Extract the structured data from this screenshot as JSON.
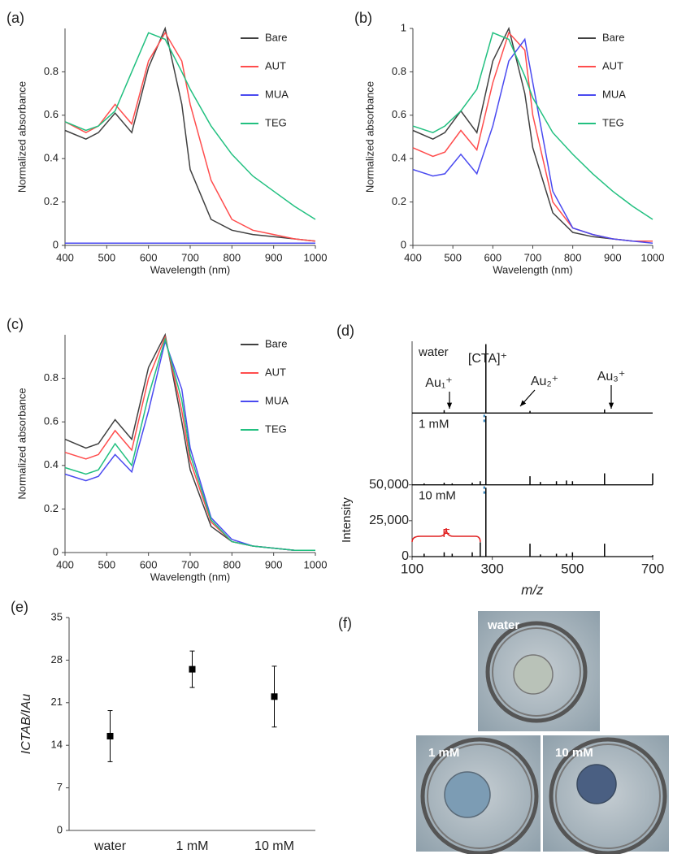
{
  "chart_data": [
    {
      "type": "line",
      "panel_label": "(a)",
      "x_label": "Wavelength  (nm)",
      "y_label": "Normalized  absorbance",
      "x": [
        400,
        450,
        480,
        520,
        560,
        600,
        640,
        680,
        700,
        750,
        800,
        850,
        900,
        950,
        1000
      ],
      "series": [
        {
          "name": "Bare",
          "color": "#404040",
          "values": [
            0.53,
            0.49,
            0.52,
            0.61,
            0.52,
            0.82,
            1.0,
            0.65,
            0.35,
            0.12,
            0.07,
            0.05,
            0.04,
            0.03,
            0.02
          ]
        },
        {
          "name": "AUT",
          "color": "#ff4d4d",
          "values": [
            0.57,
            0.52,
            0.55,
            0.65,
            0.56,
            0.85,
            0.98,
            0.85,
            0.65,
            0.3,
            0.12,
            0.07,
            0.05,
            0.03,
            0.02
          ]
        },
        {
          "name": "MUA",
          "color": "#4a4af0",
          "values": [
            0.01,
            0.01,
            0.01,
            0.01,
            0.01,
            0.01,
            0.01,
            0.01,
            0.01,
            0.01,
            0.01,
            0.01,
            0.01,
            0.01,
            0.01
          ]
        },
        {
          "name": "TEG",
          "color": "#22c080",
          "values": [
            0.57,
            0.53,
            0.55,
            0.62,
            0.8,
            0.98,
            0.95,
            0.8,
            0.72,
            0.55,
            0.42,
            0.32,
            0.25,
            0.18,
            0.12
          ]
        }
      ],
      "xlim": [
        400,
        1000
      ],
      "ylim": [
        0,
        1
      ],
      "xticks": [
        400,
        500,
        600,
        700,
        800,
        900,
        1000
      ],
      "yticks": [
        0,
        0.2,
        0.4,
        0.6,
        0.8
      ],
      "legend": "upper right"
    },
    {
      "type": "line",
      "panel_label": "(b)",
      "x_label": "Wavelength  (nm)",
      "y_label": "Normalized  absorbance",
      "x": [
        400,
        450,
        480,
        520,
        560,
        600,
        640,
        680,
        700,
        750,
        800,
        850,
        900,
        950,
        1000
      ],
      "series": [
        {
          "name": "Bare",
          "color": "#404040",
          "values": [
            0.53,
            0.49,
            0.52,
            0.62,
            0.52,
            0.85,
            1.0,
            0.7,
            0.45,
            0.15,
            0.06,
            0.04,
            0.03,
            0.02,
            0.02
          ]
        },
        {
          "name": "AUT",
          "color": "#ff4d4d",
          "values": [
            0.45,
            0.41,
            0.43,
            0.53,
            0.44,
            0.75,
            0.98,
            0.9,
            0.6,
            0.2,
            0.08,
            0.05,
            0.03,
            0.02,
            0.02
          ]
        },
        {
          "name": "MUA",
          "color": "#4a4af0",
          "values": [
            0.35,
            0.32,
            0.33,
            0.42,
            0.33,
            0.55,
            0.85,
            0.95,
            0.75,
            0.25,
            0.08,
            0.05,
            0.03,
            0.02,
            0.01
          ]
        },
        {
          "name": "TEG",
          "color": "#22c080",
          "values": [
            0.55,
            0.52,
            0.55,
            0.62,
            0.72,
            0.98,
            0.95,
            0.78,
            0.68,
            0.52,
            0.42,
            0.33,
            0.25,
            0.18,
            0.12
          ]
        }
      ],
      "xlim": [
        400,
        1000
      ],
      "ylim": [
        0,
        1
      ],
      "xticks": [
        400,
        500,
        600,
        700,
        800,
        900,
        1000
      ],
      "yticks": [
        0,
        0.2,
        0.4,
        0.6,
        0.8,
        1
      ],
      "legend": "upper right"
    },
    {
      "type": "line",
      "panel_label": "(c)",
      "x_label": "Wavelength  (nm)",
      "y_label": "Normalized  absorbance",
      "x": [
        400,
        450,
        480,
        520,
        560,
        600,
        640,
        680,
        700,
        750,
        800,
        850,
        900,
        950,
        1000
      ],
      "series": [
        {
          "name": "Bare",
          "color": "#404040",
          "values": [
            0.52,
            0.48,
            0.5,
            0.61,
            0.52,
            0.85,
            1.0,
            0.6,
            0.38,
            0.12,
            0.05,
            0.03,
            0.02,
            0.01,
            0.01
          ]
        },
        {
          "name": "AUT",
          "color": "#ff4d4d",
          "values": [
            0.46,
            0.43,
            0.45,
            0.56,
            0.47,
            0.8,
            0.99,
            0.65,
            0.42,
            0.14,
            0.05,
            0.03,
            0.02,
            0.01,
            0.01
          ]
        },
        {
          "name": "MUA",
          "color": "#4a4af0",
          "values": [
            0.36,
            0.33,
            0.35,
            0.45,
            0.37,
            0.65,
            0.97,
            0.75,
            0.48,
            0.16,
            0.06,
            0.03,
            0.02,
            0.01,
            0.01
          ]
        },
        {
          "name": "TEG",
          "color": "#22c080",
          "values": [
            0.39,
            0.36,
            0.38,
            0.5,
            0.4,
            0.72,
            0.98,
            0.7,
            0.45,
            0.15,
            0.05,
            0.03,
            0.02,
            0.01,
            0.01
          ]
        }
      ],
      "xlim": [
        400,
        1000
      ],
      "ylim": [
        0,
        1
      ],
      "xticks": [
        400,
        500,
        600,
        700,
        800,
        900,
        1000
      ],
      "yticks": [
        0,
        0.2,
        0.4,
        0.6,
        0.8
      ],
      "legend": "upper right"
    },
    {
      "type": "stem",
      "panel_label": "(d)",
      "x_label": "m/z",
      "y_label": "Intensity",
      "x": [
        130,
        180,
        200,
        250,
        270,
        284,
        394,
        420,
        460,
        485,
        500,
        580,
        700
      ],
      "series": [
        {
          "name": "water",
          "color": "#000000",
          "values": [
            0,
            2000,
            0,
            0,
            0,
            48000,
            1500,
            0,
            0,
            0,
            0,
            2500,
            0
          ]
        },
        {
          "name": "1 mM",
          "color": "#000000",
          "values": [
            1000,
            1500,
            1000,
            1500,
            2500,
            48000,
            6000,
            2000,
            2500,
            3000,
            2500,
            8000,
            8000
          ]
        },
        {
          "name": "10 mM",
          "color": "#000000",
          "values": [
            2000,
            3000,
            2000,
            3000,
            10000,
            48000,
            9000,
            1500,
            2000,
            2000,
            3000,
            9000,
            1000
          ]
        }
      ],
      "annotations": [
        "[CTA]⁺",
        "Au₁⁺",
        "Au₂⁺",
        "Au₃⁺",
        "F"
      ],
      "xlim": [
        100,
        700
      ],
      "ylim": [
        0,
        50000
      ],
      "xticks": [
        100,
        300,
        500,
        700
      ],
      "yticks": [
        0,
        {
          "value": 25000,
          "label": "25,000"
        },
        {
          "value": 50000,
          "label": "50,000"
        }
      ]
    },
    {
      "type": "errorbar",
      "panel_label": "(e)",
      "y_label": "ICTAB/IAu",
      "categories": [
        "water",
        "1 mM",
        "10 mM"
      ],
      "values": [
        15.5,
        26.5,
        22
      ],
      "errors": [
        4.2,
        3,
        5
      ],
      "ylim": [
        0,
        35
      ],
      "yticks": [
        0,
        7,
        14,
        21,
        28,
        35
      ],
      "color": "#000000"
    }
  ],
  "photos": {
    "panel_label": "(f)",
    "samples": [
      "water",
      "1 mM",
      "10 mM"
    ]
  }
}
